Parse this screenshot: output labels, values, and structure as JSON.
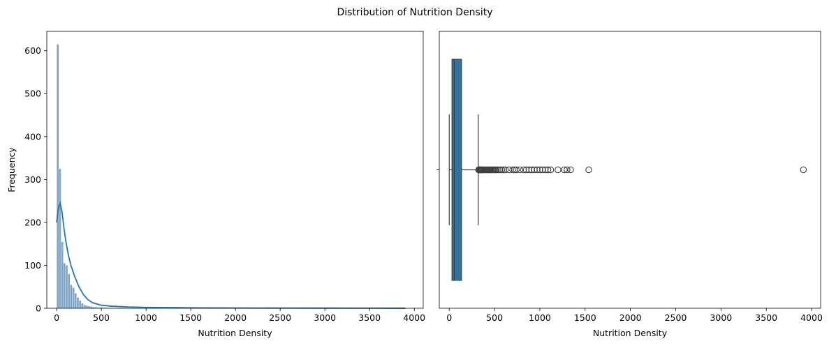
{
  "figure": {
    "title": "Distribution of Nutrition Density"
  },
  "chart_data": [
    {
      "type": "histogram",
      "title": "",
      "xlabel": "Nutrition Density",
      "ylabel": "Frequency",
      "xlim": [
        -110,
        4100
      ],
      "ylim": [
        0,
        645
      ],
      "xticks": [
        0,
        500,
        1000,
        1500,
        2000,
        2500,
        3000,
        3500,
        4000
      ],
      "yticks": [
        0,
        100,
        200,
        300,
        400,
        500,
        600
      ],
      "bin_width": 25,
      "bins_start": 0,
      "bar_color": "#7ea5c8",
      "kde_color": "#1f77b4",
      "counts": [
        615,
        325,
        155,
        105,
        100,
        80,
        55,
        48,
        35,
        25,
        18,
        12,
        8,
        6,
        5,
        4,
        3,
        3,
        2,
        2,
        2,
        2,
        1,
        1,
        1,
        1,
        1,
        1,
        1,
        1,
        0,
        1,
        1,
        0,
        1,
        1,
        0,
        1,
        0,
        1,
        1
      ],
      "kde": {
        "x": [
          0,
          20,
          40,
          60,
          80,
          100,
          130,
          160,
          200,
          250,
          300,
          350,
          400,
          500,
          600,
          800,
          1000,
          1500,
          2000,
          2500,
          3000,
          3500,
          3900
        ],
        "y": [
          200,
          235,
          245,
          225,
          190,
          160,
          125,
          100,
          75,
          50,
          32,
          20,
          13,
          7,
          5,
          3,
          2,
          1,
          0.6,
          0.4,
          0.3,
          0.2,
          0.1
        ]
      }
    },
    {
      "type": "boxplot",
      "title": "",
      "xlabel": "Nutrition Density",
      "ylabel": "",
      "xlim": [
        -110,
        4100
      ],
      "xticks": [
        0,
        500,
        1000,
        1500,
        2000,
        2500,
        3000,
        3500,
        4000
      ],
      "box_color": "#3274a1",
      "whisker_low": 0,
      "q1": 30,
      "median": 55,
      "q3": 135,
      "whisker_high": 320,
      "outliers": [
        325,
        330,
        335,
        340,
        345,
        350,
        355,
        360,
        365,
        370,
        380,
        390,
        400,
        410,
        420,
        430,
        440,
        450,
        460,
        470,
        480,
        490,
        500,
        510,
        520,
        540,
        560,
        580,
        600,
        620,
        660,
        700,
        720,
        740,
        780,
        820,
        850,
        880,
        910,
        940,
        970,
        1000,
        1030,
        1060,
        1090,
        1120,
        1200,
        1270,
        1300,
        1340,
        1540,
        3910
      ]
    }
  ]
}
